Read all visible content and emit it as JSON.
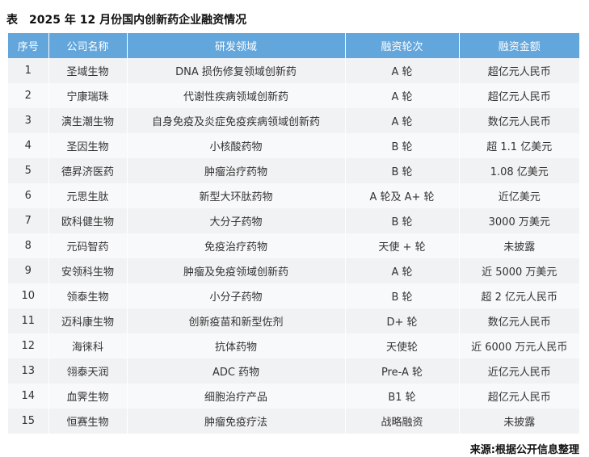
{
  "title": "表　2025 年 12 月份国内创新药企业融资情况",
  "headers": [
    "序号",
    "公司名称",
    "研发领域",
    "融资轮次",
    "融资金额"
  ],
  "rows": [
    [
      "1",
      "圣域生物",
      "DNA 损伤修复领域创新药",
      "A 轮",
      "超亿元人民币"
    ],
    [
      "2",
      "宁康瑞珠",
      "代谢性疾病领域创新药",
      "A 轮",
      "超亿元人民币"
    ],
    [
      "3",
      "演生潮生物",
      "自身免疫及炎症免疫疾病领域创新药",
      "A 轮",
      "数亿元人民币"
    ],
    [
      "4",
      "圣因生物",
      "小核酸药物",
      "B 轮",
      "超 1.1 亿美元"
    ],
    [
      "5",
      "德昇济医药",
      "肿瘤治疗药物",
      "B 轮",
      "1.08 亿美元"
    ],
    [
      "6",
      "元思生肽",
      "新型大环肽药物",
      "A 轮及 A+ 轮",
      "近亿美元"
    ],
    [
      "7",
      "欧科健生物",
      "大分子药物",
      "B 轮",
      "3000 万美元"
    ],
    [
      "8",
      "元码智药",
      "免疫治疗药物",
      "天使 + 轮",
      "未披露"
    ],
    [
      "9",
      "安领科生物",
      "肿瘤及免疫领域创新药",
      "A 轮",
      "近 5000 万美元"
    ],
    [
      "10",
      "领泰生物",
      "小分子药物",
      "B 轮",
      "超 2 亿元人民币"
    ],
    [
      "11",
      "迈科康生物",
      "创新疫苗和新型佐剂",
      "D+ 轮",
      "数亿元人民币"
    ],
    [
      "12",
      "海徕科",
      "抗体药物",
      "天使轮",
      "近 6000 万元人民币"
    ],
    [
      "13",
      "翎泰天润",
      "ADC 药物",
      "Pre-A 轮",
      "近亿元人民币"
    ],
    [
      "14",
      "血霁生物",
      "细胞治疗产品",
      "B1 轮",
      "超亿元人民币"
    ],
    [
      "15",
      "恒赛生物",
      "肿瘤免疫疗法",
      "战略融资",
      "未披露"
    ]
  ],
  "source": "来源:根据公开信息整理",
  "colors": {
    "header_bg": "#62a6dc"
  }
}
